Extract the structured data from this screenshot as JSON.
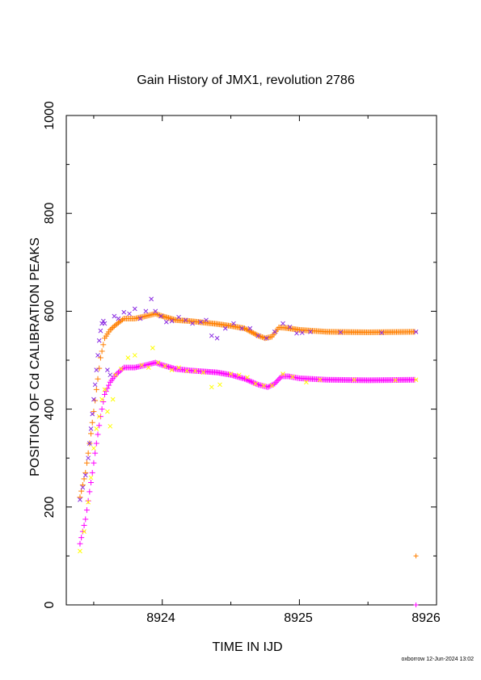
{
  "chart_data": {
    "type": "scatter",
    "title": "Gain History of JMX1, revolution 2786",
    "xlabel": "TIME IN IJD",
    "ylabel": "POSITION OF Cd CALIBRATION PEAKS",
    "xlim": [
      8923.3,
      8926.0
    ],
    "ylim": [
      0,
      1000
    ],
    "xticks": [
      "8924",
      "8925",
      "8926"
    ],
    "yticks": [
      "0",
      "200",
      "400",
      "600",
      "800",
      "1000"
    ],
    "grid": false,
    "legend": "none",
    "colors": {
      "upper_points": "#8a2be2",
      "upper_fit": "#ff7f00",
      "lower_points": "#ffff00",
      "lower_fit": "#ff00ff"
    },
    "series": [
      {
        "marker": "x",
        "color": "#8a2be2",
        "points": [
          [
            8923.4,
            215
          ],
          [
            8923.42,
            240
          ],
          [
            8923.44,
            265
          ],
          [
            8923.46,
            300
          ],
          [
            8923.47,
            330
          ],
          [
            8923.48,
            360
          ],
          [
            8923.49,
            390
          ],
          [
            8923.5,
            420
          ],
          [
            8923.51,
            450
          ],
          [
            8923.52,
            480
          ],
          [
            8923.53,
            510
          ],
          [
            8923.54,
            540
          ],
          [
            8923.55,
            560
          ],
          [
            8923.56,
            575
          ],
          [
            8923.57,
            580
          ],
          [
            8923.58,
            575
          ],
          [
            8923.6,
            480
          ],
          [
            8923.62,
            470
          ],
          [
            8923.65,
            590
          ],
          [
            8923.68,
            585
          ],
          [
            8923.72,
            598
          ],
          [
            8923.76,
            595
          ],
          [
            8923.8,
            605
          ],
          [
            8923.84,
            585
          ],
          [
            8923.88,
            600
          ],
          [
            8923.92,
            625
          ],
          [
            8923.95,
            600
          ],
          [
            8923.99,
            590
          ],
          [
            8924.03,
            578
          ],
          [
            8924.07,
            580
          ],
          [
            8924.12,
            588
          ],
          [
            8924.17,
            582
          ],
          [
            8924.22,
            575
          ],
          [
            8924.28,
            578
          ],
          [
            8924.32,
            582
          ],
          [
            8924.36,
            550
          ],
          [
            8924.4,
            545
          ],
          [
            8924.46,
            565
          ],
          [
            8924.52,
            575
          ],
          [
            8924.58,
            565
          ],
          [
            8924.64,
            565
          ],
          [
            8924.7,
            550
          ],
          [
            8924.76,
            545
          ],
          [
            8924.82,
            558
          ],
          [
            8924.88,
            575
          ],
          [
            8924.93,
            568
          ],
          [
            8924.98,
            555
          ],
          [
            8925.02,
            556
          ],
          [
            8925.08,
            558
          ],
          [
            8925.3,
            557
          ],
          [
            8925.6,
            556
          ],
          [
            8925.85,
            558
          ]
        ]
      },
      {
        "marker": "+",
        "color": "#ff7f00",
        "points": [
          [
            8925.85,
            100
          ]
        ],
        "fit": [
          [
            8923.4,
            220
          ],
          [
            8923.44,
            270
          ],
          [
            8923.48,
            350
          ],
          [
            8923.52,
            440
          ],
          [
            8923.55,
            505
          ],
          [
            8923.58,
            545
          ],
          [
            8923.62,
            562
          ],
          [
            8923.66,
            572
          ],
          [
            8923.72,
            585
          ],
          [
            8923.8,
            585
          ],
          [
            8923.88,
            590
          ],
          [
            8923.95,
            595
          ],
          [
            8924.0,
            590
          ],
          [
            8924.1,
            582
          ],
          [
            8924.2,
            580
          ],
          [
            8924.3,
            577
          ],
          [
            8924.4,
            574
          ],
          [
            8924.5,
            570
          ],
          [
            8924.6,
            565
          ],
          [
            8924.7,
            550
          ],
          [
            8924.75,
            545
          ],
          [
            8924.8,
            548
          ],
          [
            8924.85,
            567
          ],
          [
            8924.9,
            566
          ],
          [
            8925.0,
            562
          ],
          [
            8925.2,
            558
          ],
          [
            8925.5,
            557
          ],
          [
            8925.85,
            558
          ]
        ]
      },
      {
        "marker": "x",
        "color": "#ffff00",
        "points": [
          [
            8923.4,
            110
          ],
          [
            8923.43,
            150
          ],
          [
            8923.46,
            210
          ],
          [
            8923.48,
            260
          ],
          [
            8923.5,
            320
          ],
          [
            8923.52,
            360
          ],
          [
            8923.54,
            385
          ],
          [
            8923.56,
            420
          ],
          [
            8923.58,
            440
          ],
          [
            8923.6,
            395
          ],
          [
            8923.62,
            365
          ],
          [
            8923.64,
            420
          ],
          [
            8923.66,
            470
          ],
          [
            8923.7,
            482
          ],
          [
            8923.75,
            505
          ],
          [
            8923.8,
            510
          ],
          [
            8923.85,
            490
          ],
          [
            8923.9,
            485
          ],
          [
            8923.93,
            525
          ],
          [
            8923.97,
            495
          ],
          [
            8924.02,
            488
          ],
          [
            8924.07,
            480
          ],
          [
            8924.12,
            485
          ],
          [
            8924.18,
            478
          ],
          [
            8924.24,
            478
          ],
          [
            8924.3,
            475
          ],
          [
            8924.36,
            445
          ],
          [
            8924.42,
            450
          ],
          [
            8924.5,
            472
          ],
          [
            8924.56,
            470
          ],
          [
            8924.62,
            465
          ],
          [
            8924.68,
            452
          ],
          [
            8924.74,
            448
          ],
          [
            8924.8,
            448
          ],
          [
            8924.88,
            472
          ],
          [
            8924.95,
            466
          ],
          [
            8925.05,
            455
          ],
          [
            8925.15,
            460
          ],
          [
            8925.4,
            460
          ],
          [
            8925.7,
            459
          ],
          [
            8925.85,
            460
          ]
        ]
      },
      {
        "marker": "+",
        "color": "#ff00ff",
        "points": [
          [
            8925.85,
            0
          ]
        ],
        "fit": [
          [
            8923.4,
            125
          ],
          [
            8923.44,
            175
          ],
          [
            8923.48,
            250
          ],
          [
            8923.52,
            330
          ],
          [
            8923.55,
            385
          ],
          [
            8923.58,
            430
          ],
          [
            8923.62,
            455
          ],
          [
            8923.66,
            470
          ],
          [
            8923.72,
            485
          ],
          [
            8923.8,
            485
          ],
          [
            8923.88,
            490
          ],
          [
            8923.95,
            495
          ],
          [
            8924.0,
            490
          ],
          [
            8924.1,
            482
          ],
          [
            8924.2,
            479
          ],
          [
            8924.3,
            477
          ],
          [
            8924.4,
            475
          ],
          [
            8924.5,
            470
          ],
          [
            8924.6,
            462
          ],
          [
            8924.7,
            450
          ],
          [
            8924.77,
            445
          ],
          [
            8924.82,
            452
          ],
          [
            8924.87,
            467
          ],
          [
            8924.92,
            467
          ],
          [
            8925.0,
            463
          ],
          [
            8925.2,
            460
          ],
          [
            8925.5,
            459
          ],
          [
            8925.85,
            460
          ]
        ]
      }
    ]
  },
  "footer": {
    "stamp": "oxborrow 12-Jun-2024 13:02"
  }
}
